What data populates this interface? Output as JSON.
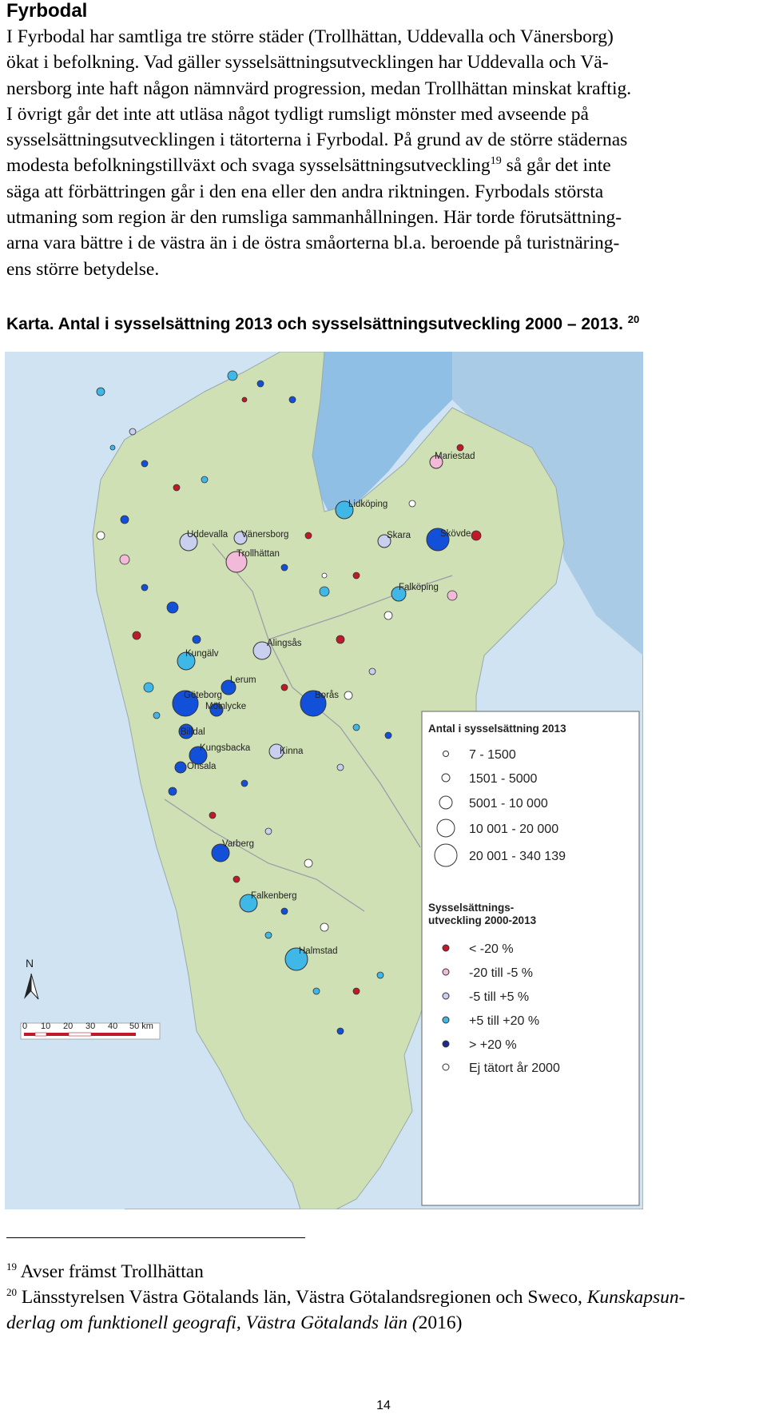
{
  "section_title": "Fyrbodal",
  "paragraph": {
    "l1": "I Fyrbodal har samtliga tre större städer (Trollhättan, Uddevalla och Vänersborg)",
    "l2": "ökat i befolkning. Vad gäller sysselsättningsutvecklingen har Uddevalla och Vä-",
    "l3": "nersborg inte haft någon nämnvärd progression, medan Trollhättan minskat kraftig.",
    "l4": "I övrigt går det inte att utläsa något tydligt rumsligt mönster med avseende på",
    "l5": "sysselsättningsutvecklingen i tätorterna i Fyrbodal. På grund av de större städernas",
    "l6a": "modesta befolkningstillväxt och svaga sysselsättningsutveckling",
    "l6_ref": "19",
    "l6b": " så går det inte",
    "l7": "säga att förbättringen går i den ena eller den andra riktningen. Fyrbodals största",
    "l8": "utmaning som region är den rumsliga sammanhållningen. Här torde förutsättning-",
    "l9": "arna vara bättre i de västra än i de östra småorterna bl.a. beroende på turistnäring-",
    "l10": "ens större betydelse."
  },
  "map_caption": {
    "text": "Karta. Antal i sysselsättning 2013 och sysselsättningsutveckling 2000 – 2013.",
    "ref": "20"
  },
  "map": {
    "cities": [
      "Mariestad",
      "Lidköping",
      "Skara",
      "Skövde",
      "Uddevalla",
      "Vänersborg",
      "Trollhättan",
      "Falköping",
      "Alingsås",
      "Kungälv",
      "Lerum",
      "Göteborg",
      "Mölnlycke",
      "Borås",
      "Billdal",
      "Kungsbacka",
      "Kinna",
      "Onsala",
      "Varberg",
      "Falkenberg",
      "Halmstad"
    ],
    "legend_size": {
      "title": "Antal i sysselsättning 2013",
      "items": [
        "7 - 1500",
        "1501 - 5000",
        "5001 - 10 000",
        "10 001 - 20 000",
        "20 001 - 340 139"
      ]
    },
    "legend_change": {
      "title_l1": "Sysselsättnings-",
      "title_l2": "utveckling 2000-2013",
      "items": [
        "< -20 %",
        "-20 till -5 %",
        "-5 till +5 %",
        "+5 till +20 %",
        "> +20 %",
        "Ej tätort år 2000"
      ]
    },
    "north_label": "N",
    "scale_labels": [
      "0",
      "10",
      "20",
      "30",
      "40",
      "50 km"
    ],
    "colors": {
      "sea": "#cfe3f2",
      "sea_deep": "#a9cbe6",
      "land": "#cfe0b4",
      "lake": "#8fbfe4",
      "lt_m20": "#c0192a",
      "m20_m5": "#f2b9d8",
      "m5_p5": "#c9cfee",
      "p5_p20": "#3fb8e8",
      "gt_p20": "#1250d9",
      "new": "#ffffff"
    }
  },
  "footnotes": [
    {
      "num": "19",
      "text": "Avser främst Trollhättan"
    },
    {
      "num": "20",
      "text": "Länsstyrelsen Västra Götalands län, Västra Götalandsregionen och Sweco, ",
      "italic_l1": "Kunskapsun-",
      "italic_l2": "derlag om funktionell geografi, Västra Götalands län (",
      "after": "2016)"
    }
  ],
  "page_number": "14"
}
